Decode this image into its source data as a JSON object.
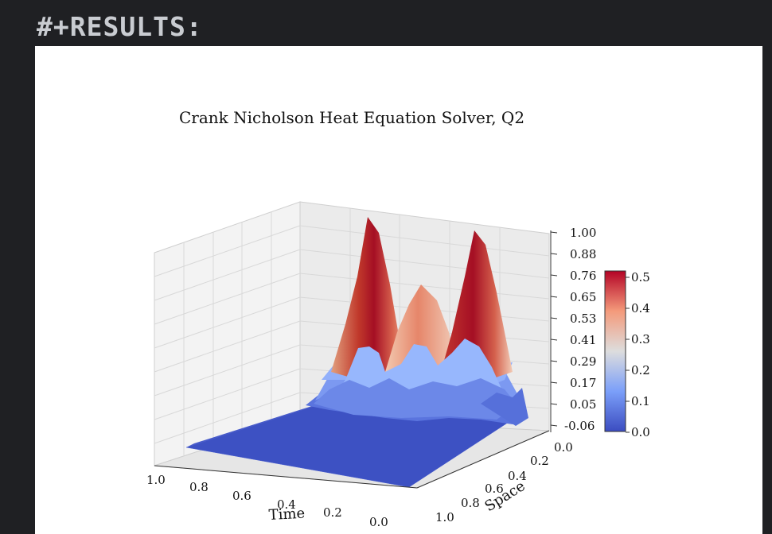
{
  "results_label": "#+RESULTS:",
  "chart_data": {
    "type": "surface3d",
    "title": "Crank Nicholson Heat Equation Solver, Q2",
    "xlabel": "Time",
    "ylabel": "Space",
    "zlabel": "",
    "x_ticks": [
      "1.0",
      "0.8",
      "0.6",
      "0.4",
      "0.2",
      "0.0"
    ],
    "y_ticks": [
      "0.0",
      "0.2",
      "0.4",
      "0.6",
      "0.8",
      "1.0"
    ],
    "z_ticks": [
      "1.00",
      "0.88",
      "0.76",
      "0.65",
      "0.53",
      "0.41",
      "0.29",
      "0.17",
      "0.05",
      "-0.06"
    ],
    "xlim": [
      0,
      1
    ],
    "ylim": [
      0,
      1
    ],
    "zlim": [
      -0.06,
      1.0
    ],
    "colormap": "coolwarm",
    "colorbar": {
      "ticks": [
        "0.5",
        "0.4",
        "0.3",
        "0.2",
        "0.1",
        "0.0"
      ],
      "range": [
        0.0,
        0.53
      ]
    },
    "grid": true,
    "peaks": [
      {
        "time": 0.0,
        "space": 0.25,
        "value": 1.0
      },
      {
        "time": 0.0,
        "space": 0.5,
        "value": 0.65
      },
      {
        "time": 0.0,
        "space": 0.75,
        "value": 1.0
      }
    ],
    "colors": {
      "low": "#3b4cc0",
      "mid": "#dddddd",
      "high": "#b40426"
    }
  }
}
